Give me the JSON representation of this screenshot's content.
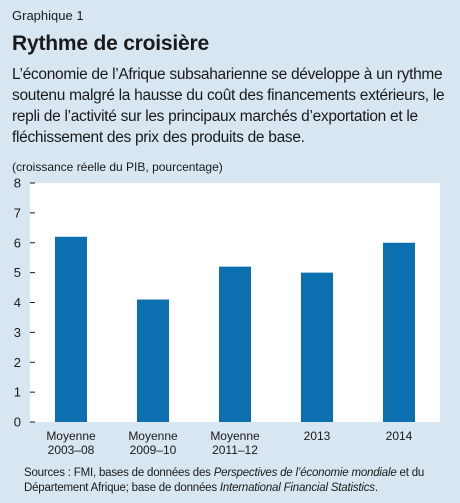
{
  "header": {
    "kicker": "Graphique 1",
    "title": "Rythme de croisière",
    "subtitle": "L’économie de l’Afrique subsaharienne se développe à un rythme soutenu malgré la hausse du coût des financements extérieurs, le repli de l’activité sur les principaux marchés d’exportation et le fléchissement des prix des produits de base."
  },
  "chart_data": {
    "type": "bar",
    "units_label": "(croissance réelle du PIB, pourcentage)",
    "categories": [
      [
        "Moyenne",
        "2003–08"
      ],
      [
        "Moyenne",
        "2009–10"
      ],
      [
        "Moyenne",
        "2011–12"
      ],
      [
        "2013"
      ],
      [
        "2014"
      ]
    ],
    "values": [
      6.2,
      4.1,
      5.2,
      5.0,
      6.0
    ],
    "ylim": [
      0,
      8
    ],
    "yticks": [
      0,
      1,
      2,
      3,
      4,
      5,
      6,
      7,
      8
    ],
    "grid": false,
    "bar_color": "#0b6fb0",
    "plot_background": "#ffffff"
  },
  "footer": {
    "source_prefix": "Sources : FMI, bases de données des ",
    "source_italic_1": "Perspectives de l’économie mondiale",
    "source_middle": " et du Département Afrique; base de données ",
    "source_italic_2": "International Financial Statistics",
    "source_suffix": "."
  }
}
